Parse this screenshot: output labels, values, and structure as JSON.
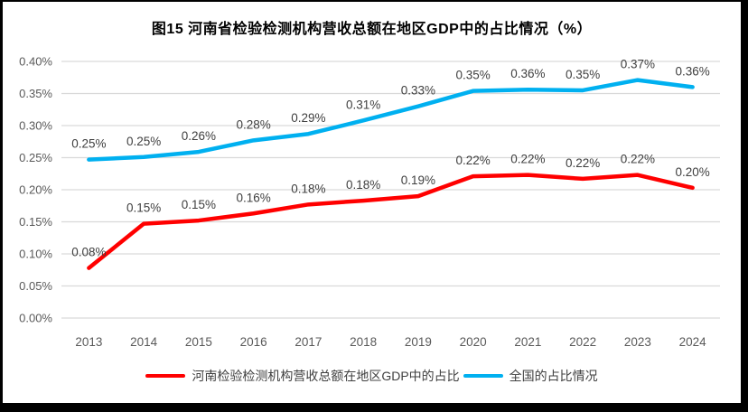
{
  "window": {
    "background": "#FFFFFF",
    "frame_color": "#000000"
  },
  "chart_data": {
    "type": "line",
    "title": "图15  河南省检验检测机构营收总额在地区GDP中的占比情况（%）",
    "categories": [
      "2013",
      "2014",
      "2015",
      "2016",
      "2017",
      "2018",
      "2019",
      "2020",
      "2021",
      "2022",
      "2023",
      "2024"
    ],
    "series": [
      {
        "key": "henan",
        "name": "河南检验检测机构营收总额在地区GDP中的占比",
        "color": "#FF0000",
        "values": [
          0.078,
          0.147,
          0.152,
          0.163,
          0.177,
          0.183,
          0.19,
          0.221,
          0.223,
          0.217,
          0.223,
          0.203
        ],
        "labels": [
          "0.08%",
          "0.15%",
          "0.15%",
          "0.16%",
          "0.18%",
          "0.18%",
          "0.19%",
          "0.22%",
          "0.22%",
          "0.22%",
          "0.22%",
          "0.20%"
        ]
      },
      {
        "key": "national",
        "name": "全国的占比情况",
        "color": "#00B0F0",
        "values": [
          0.247,
          0.251,
          0.259,
          0.277,
          0.287,
          0.308,
          0.33,
          0.354,
          0.356,
          0.355,
          0.371,
          0.36
        ],
        "labels": [
          "0.25%",
          "0.25%",
          "0.26%",
          "0.28%",
          "0.29%",
          "0.31%",
          "0.33%",
          "0.35%",
          "0.36%",
          "0.35%",
          "0.37%",
          "0.36%"
        ]
      }
    ],
    "y_axis": {
      "min": 0,
      "max": 0.4,
      "step": 0.05,
      "tick_labels": [
        "0.00%",
        "0.05%",
        "0.10%",
        "0.15%",
        "0.20%",
        "0.25%",
        "0.30%",
        "0.35%",
        "0.40%"
      ],
      "format": "percent"
    },
    "grid": true,
    "legend_position": "bottom",
    "colors": {
      "gridline": "#D9D9D9",
      "tick_text": "#595959",
      "data_label_text": "#3F3F3F",
      "title_text": "#000000"
    }
  }
}
